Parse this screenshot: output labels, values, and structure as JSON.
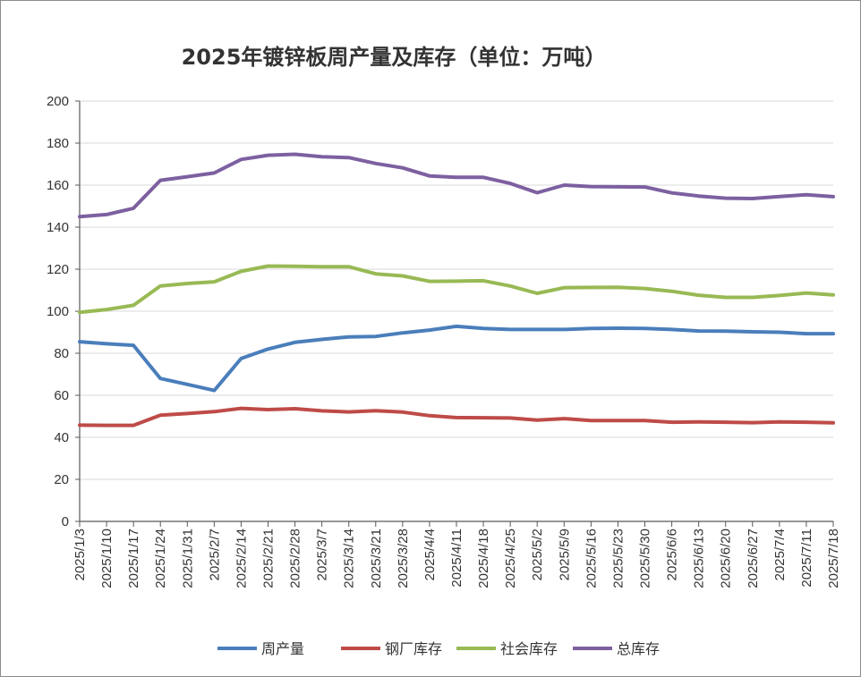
{
  "chart_data": {
    "type": "line",
    "title": "2025年镀锌板周产量及库存（单位：万吨）",
    "xlabel": "",
    "ylabel": "",
    "ylim": [
      0,
      200
    ],
    "yticks": [
      0,
      20,
      40,
      60,
      80,
      100,
      120,
      140,
      160,
      180,
      200
    ],
    "grid": true,
    "legend_position": "bottom",
    "categories": [
      "2025/1/3",
      "2025/1/10",
      "2025/1/17",
      "2025/1/24",
      "2025/1/31",
      "2025/2/7",
      "2025/2/14",
      "2025/2/21",
      "2025/2/28",
      "2025/3/7",
      "2025/3/14",
      "2025/3/21",
      "2025/3/28",
      "2025/4/4",
      "2025/4/11",
      "2025/4/18",
      "2025/4/25",
      "2025/5/2",
      "2025/5/9",
      "2025/5/16",
      "2025/5/23",
      "2025/5/30",
      "2025/6/6",
      "2025/6/13",
      "2025/6/20",
      "2025/6/27",
      "2025/7/4",
      "2025/7/11",
      "2025/7/18"
    ],
    "series": [
      {
        "name": "周产量",
        "color": "#4a7ebb",
        "values": [
          85.5,
          84.5,
          83.8,
          68.0,
          65.2,
          62.3,
          77.5,
          82.0,
          85.2,
          86.6,
          87.8,
          88.0,
          89.7,
          91.0,
          92.8,
          91.8,
          91.3,
          91.3,
          91.3,
          91.8,
          91.9,
          91.8,
          91.3,
          90.6,
          90.5,
          90.2,
          90.0,
          89.3,
          89.3
        ]
      },
      {
        "name": "钢厂库存",
        "color": "#be4b48",
        "values": [
          45.8,
          45.7,
          45.7,
          50.5,
          51.3,
          52.2,
          53.8,
          53.2,
          53.6,
          52.6,
          52.1,
          52.7,
          52.0,
          50.3,
          49.4,
          49.3,
          49.2,
          48.2,
          48.9,
          48.0,
          48.0,
          48.0,
          47.2,
          47.3,
          47.2,
          47.0,
          47.3,
          47.2,
          46.9
        ]
      },
      {
        "name": "社会库存",
        "color": "#98b954",
        "values": [
          99.5,
          100.8,
          102.8,
          112.0,
          113.2,
          114.0,
          119.0,
          121.5,
          121.4,
          121.2,
          121.2,
          117.8,
          116.8,
          114.2,
          114.3,
          114.5,
          112.0,
          108.5,
          111.2,
          111.3,
          111.4,
          110.8,
          109.5,
          107.6,
          106.6,
          106.6,
          107.5,
          108.7,
          107.8
        ]
      },
      {
        "name": "总库存",
        "color": "#7d60a0",
        "values": [
          145.0,
          146.0,
          149.0,
          162.3,
          164.0,
          165.8,
          172.2,
          174.2,
          174.7,
          173.5,
          173.1,
          170.3,
          168.2,
          164.4,
          163.7,
          163.7,
          160.8,
          156.4,
          160.0,
          159.3,
          159.2,
          159.1,
          156.3,
          154.8,
          153.8,
          153.6,
          154.6,
          155.4,
          154.5
        ]
      }
    ]
  }
}
